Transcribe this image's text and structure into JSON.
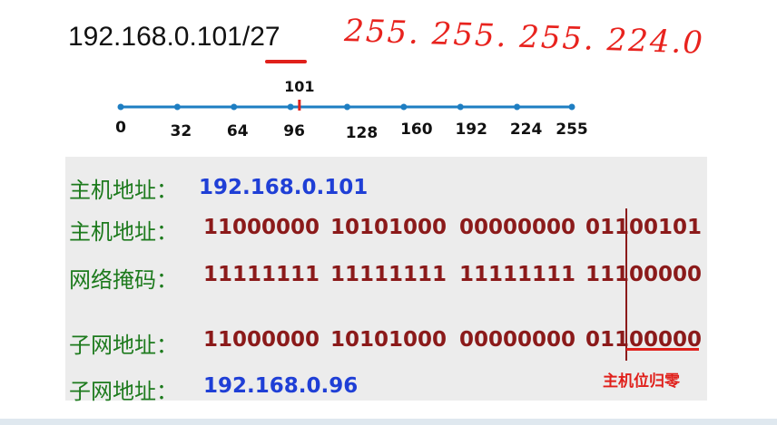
{
  "title": {
    "ip_prefix": "192.168.0.101/",
    "prefix_len": "27"
  },
  "handwritten": {
    "mask": "255. 255. 255. 224.0"
  },
  "number_line": {
    "marker_label": "101",
    "marker_value": 101,
    "ticks": [
      0,
      32,
      64,
      96,
      128,
      160,
      192,
      224,
      255
    ],
    "tick_labels": [
      "0",
      "32",
      "64",
      "96",
      "128",
      "160",
      "192",
      "224",
      "255"
    ],
    "colors": {
      "line": "#1e7ec2",
      "marker": "#e0201b"
    }
  },
  "rows": {
    "host_ip": {
      "label": "主机地址：",
      "value": "192.168.0.101"
    },
    "host_bin": {
      "label": "主机地址：",
      "octets": [
        "11000000",
        "10101000",
        "00000000",
        "01100101"
      ]
    },
    "mask_bin": {
      "label": "网络掩码：",
      "octets": [
        "11111111",
        "11111111",
        "11111111",
        "11100000"
      ]
    },
    "subnet_bin": {
      "label": "子网地址：",
      "octets": [
        "11000000",
        "10101000",
        "00000000",
        "01100000"
      ]
    },
    "subnet_ip": {
      "label": "子网地址：",
      "value": "192.168.0.96"
    }
  },
  "note": {
    "host_bits_zero": "主机位归零"
  }
}
